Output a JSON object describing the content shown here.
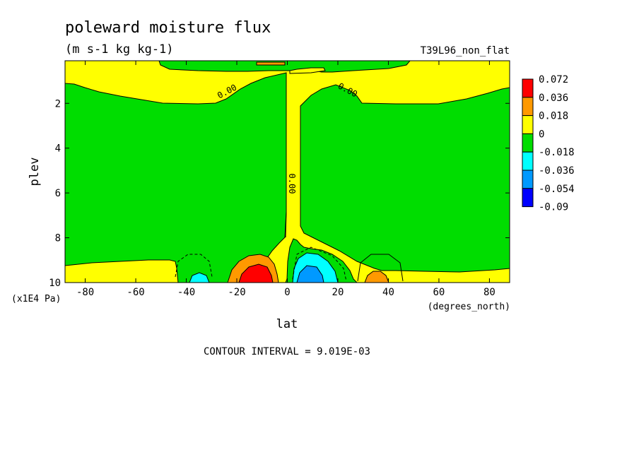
{
  "chart_data": {
    "type": "heatmap",
    "title": "poleward moisture flux",
    "subtitle": "(m s-1 kg kg-1)",
    "run_label": "T39L96_non_flat",
    "xlabel": "lat",
    "x_units": "(degrees_north)",
    "ylabel": "plev",
    "y_units": "(x1E4 Pa)",
    "xlim": [
      -88,
      88
    ],
    "ylim": [
      10,
      0.1
    ],
    "x_ticks": [
      -80,
      -60,
      -40,
      -20,
      0,
      20,
      40,
      60,
      80
    ],
    "y_ticks": [
      2,
      4,
      6,
      8,
      10
    ],
    "contour_interval_text": "CONTOUR INTERVAL = 9.019E-03",
    "contour_labels": [
      "0.00",
      "0.00",
      "0.00"
    ],
    "legend": {
      "levels": [
        "0.072",
        "0.036",
        "0.018",
        "0",
        "-0.018",
        "-0.036",
        "-0.054",
        "-0.09"
      ],
      "colors": [
        "#ff0000",
        "#ff9900",
        "#ffff00",
        "#00dd00",
        "#00ffff",
        "#0099ff",
        "#0000ff"
      ]
    },
    "colors": {
      "positive": "#ffff00",
      "negative": "#00dd00"
    }
  }
}
